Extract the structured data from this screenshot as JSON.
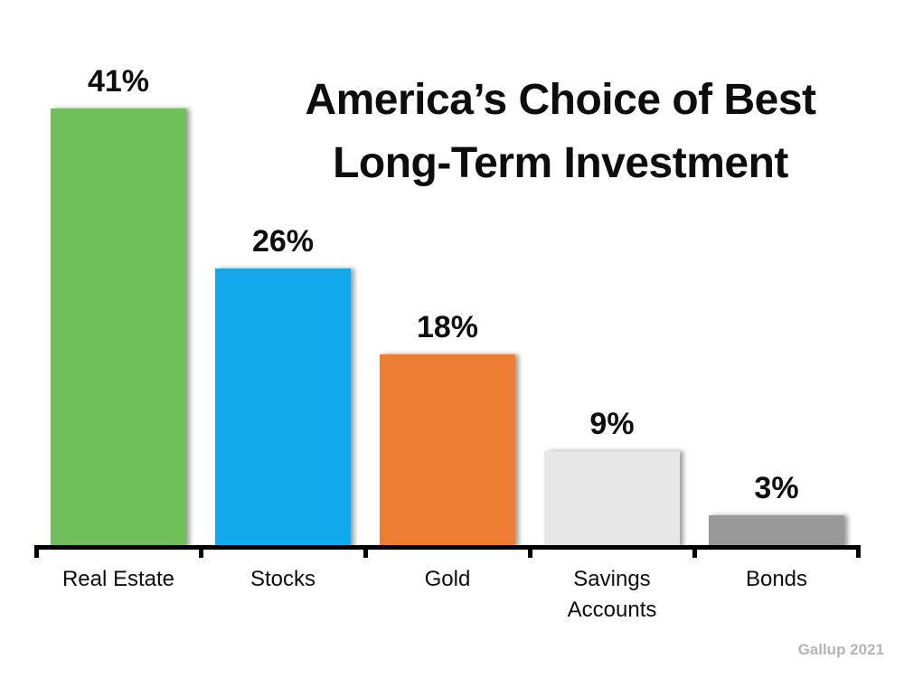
{
  "chart_data": {
    "type": "bar",
    "title": "America’s Choice of Best\nLong-Term Investment",
    "categories": [
      "Real Estate",
      "Stocks",
      "Gold",
      "Savings Accounts",
      "Bonds"
    ],
    "values": [
      41,
      26,
      18,
      9,
      3
    ],
    "value_labels": [
      "41%",
      "26%",
      "18%",
      "9%",
      "3%"
    ],
    "bar_colors": [
      "#70BF5B",
      "#11A9EC",
      "#ED7D31",
      "#E6E6E6",
      "#999999"
    ],
    "xlabel": "",
    "ylabel": "",
    "ylim": [
      0,
      45
    ],
    "grid": false,
    "legend_position": "none",
    "axis_color": "#000000",
    "source": "Gallup 2021"
  }
}
